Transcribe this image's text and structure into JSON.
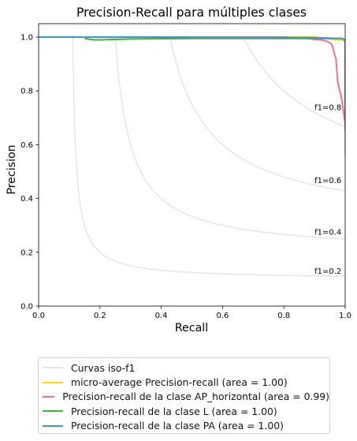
{
  "chart_data": {
    "type": "line",
    "title": "Precision-Recall para múltiples clases",
    "xlabel": "Recall",
    "ylabel": "Precision",
    "xlim": [
      0.0,
      1.0
    ],
    "ylim": [
      0.0,
      1.05
    ],
    "xticks": [
      "0.0",
      "0.2",
      "0.4",
      "0.6",
      "0.8",
      "1.0"
    ],
    "yticks": [
      "0.0",
      "0.2",
      "0.4",
      "0.6",
      "0.8",
      "1.0"
    ],
    "grid": false,
    "legend_position": "below",
    "iso_f1": {
      "values": [
        0.2,
        0.4,
        0.6,
        0.8
      ],
      "labels": [
        "f1=0.2",
        "f1=0.4",
        "f1=0.6",
        "f1=0.8"
      ],
      "color": "#e6e6e6"
    },
    "series": [
      {
        "name": "Curvas iso-f1",
        "color": "#e6e6e6",
        "x": [],
        "y": []
      },
      {
        "name": "micro-average Precision-recall (area = 1.00)",
        "color": "#ffd700",
        "x": [
          0.0,
          0.9,
          0.98,
          0.995,
          1.0,
          1.0
        ],
        "y": [
          1.0,
          1.0,
          0.99,
          0.99,
          0.98,
          0.56
        ]
      },
      {
        "name": "Precision-recall de la clase AP_horizontal (area = 0.99)",
        "color": "#f0708f",
        "x": [
          0.0,
          0.8,
          0.87,
          0.92,
          0.94,
          0.955,
          0.96,
          0.965,
          0.97,
          0.975,
          0.98,
          0.985,
          0.99,
          0.995,
          1.0,
          1.0
        ],
        "y": [
          1.0,
          1.0,
          0.995,
          0.99,
          0.985,
          0.975,
          0.96,
          0.935,
          0.92,
          0.84,
          0.81,
          0.79,
          0.76,
          0.72,
          0.68,
          0.65
        ]
      },
      {
        "name": "Precision-recall de la clase L (area = 1.00)",
        "color": "#3cb432",
        "x": [
          0.15,
          0.18,
          0.2,
          0.3,
          0.5,
          0.9,
          0.99,
          1.0
        ],
        "y": [
          0.995,
          0.99,
          0.99,
          0.993,
          0.995,
          0.995,
          0.995,
          0.99
        ]
      },
      {
        "name": "Precision-recall de la clase PA (area = 1.00)",
        "color": "#3399d9",
        "x": [
          0.0,
          0.3,
          0.9,
          0.99,
          0.995,
          1.0,
          1.0
        ],
        "y": [
          1.0,
          1.0,
          0.998,
          0.995,
          0.99,
          0.985,
          0.66
        ]
      }
    ]
  }
}
